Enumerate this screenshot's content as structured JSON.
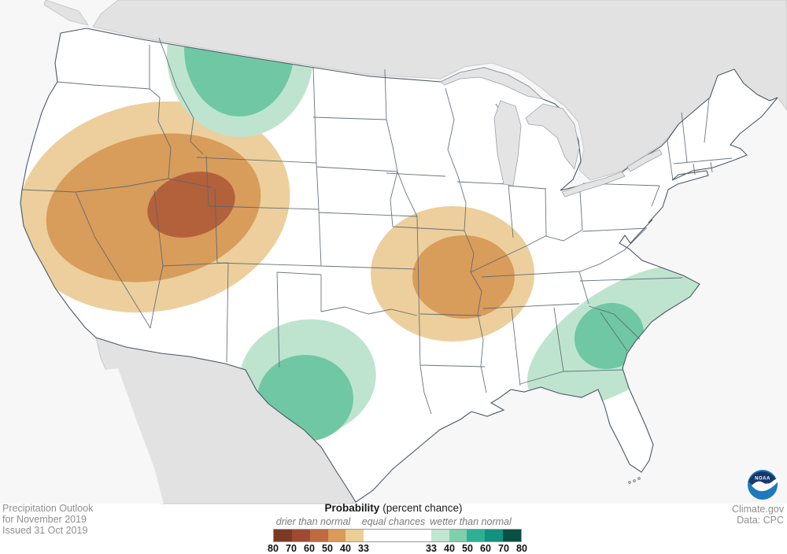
{
  "annotations": {
    "outlook_lines": [
      "Precipitation Outlook",
      "for November 2019",
      "Issued 31 Oct 2019"
    ],
    "credit_lines": [
      "Climate.gov",
      "Data: CPC"
    ],
    "noaa_logo_text": "NOAA"
  },
  "legend": {
    "title_bold": "Probability",
    "title_normal": "(percent chance)",
    "category_labels": [
      "drier than normal",
      "equal chances",
      "wetter than normal"
    ],
    "drier_tick_labels": [
      "80",
      "70",
      "60",
      "50",
      "40",
      "33"
    ],
    "wetter_tick_labels": [
      "33",
      "40",
      "50",
      "60",
      "70",
      "80"
    ],
    "drier_colors": [
      "#7b3a24",
      "#9d4b33",
      "#bf6a41",
      "#d89b58",
      "#ebcd96"
    ],
    "equal_chances_color": "#ffffff",
    "wetter_colors": [
      "#c0e5d1",
      "#7fcfad",
      "#2fb095",
      "#12917e",
      "#0b4f43"
    ]
  },
  "map": {
    "colors": {
      "ocean": "#f7f7f7",
      "neighbor_fill": "#e2e2e2",
      "lake_fill": "#e4e4e4",
      "us_fill": "#ffffff",
      "border_stroke": "#4d5863",
      "state_stroke": "#5a6570",
      "dry_33_40": "#eccf9c",
      "dry_40_50": "#d89c5b",
      "dry_50_60": "#b2613a",
      "wet_33_40": "#bee4cf",
      "wet_40_50": "#6fc8a3",
      "noaa_navy": "#17386a",
      "noaa_blue": "#1e79be"
    },
    "regions": [
      {
        "name": "west-drier",
        "category": "drier than normal",
        "bands_shown": [
          "33-40%",
          "40-50%",
          "50-60%"
        ]
      },
      {
        "name": "northern-rockies-wetter",
        "category": "wetter than normal",
        "bands_shown": [
          "33-40%",
          "40-50%"
        ]
      },
      {
        "name": "mid-mississippi-valley-drier",
        "category": "drier than normal",
        "bands_shown": [
          "33-40%",
          "40-50%"
        ]
      },
      {
        "name": "west-texas-wetter",
        "category": "wetter than normal",
        "bands_shown": [
          "33-40%",
          "40-50%"
        ]
      },
      {
        "name": "southeast-wetter",
        "category": "wetter than normal",
        "bands_shown": [
          "33-40%",
          "40-50%"
        ]
      },
      {
        "name": "remainder-of-us",
        "category": "equal chances",
        "bands_shown": [
          "white"
        ]
      }
    ]
  }
}
